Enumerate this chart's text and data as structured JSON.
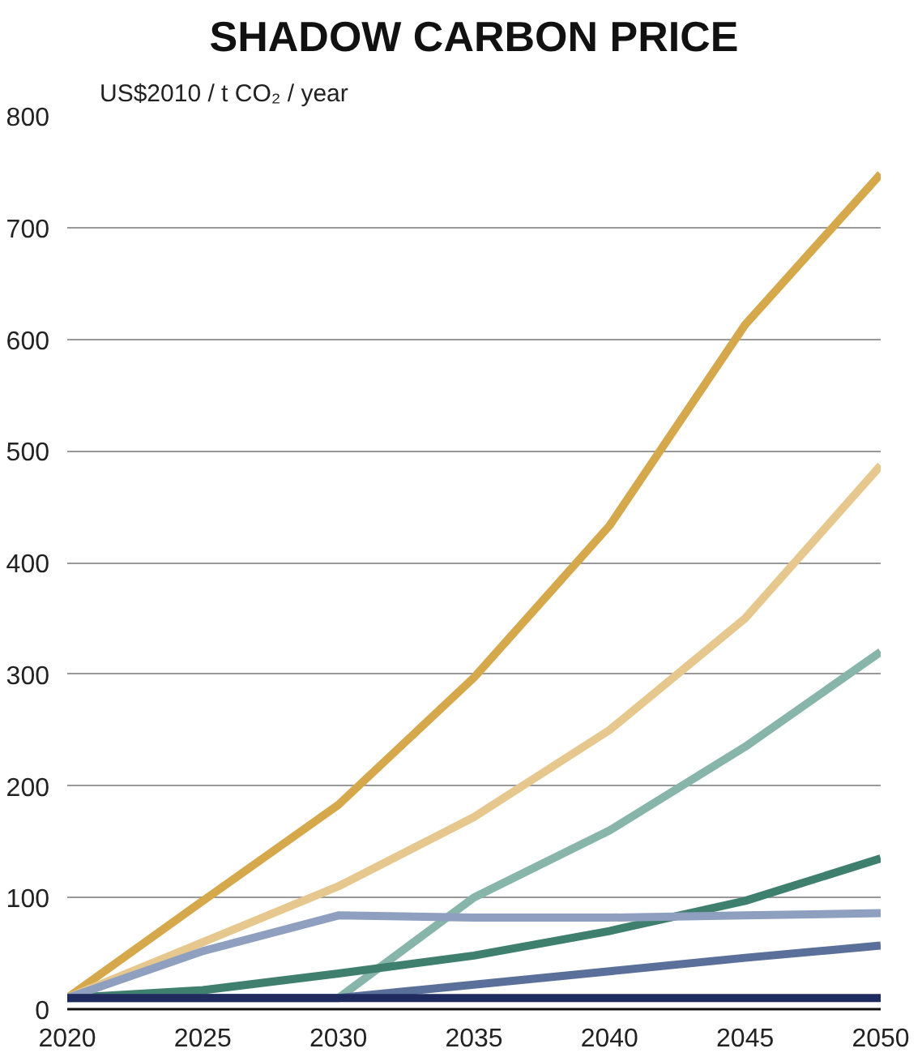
{
  "chart_data": {
    "type": "line",
    "title": "SHADOW CARBON PRICE",
    "ylabel": "US$2010 / t CO₂ / year",
    "x": [
      2020,
      2025,
      2030,
      2035,
      2040,
      2045,
      2050
    ],
    "series": [
      {
        "color": "#d4a84b",
        "values": [
          10,
          97,
          183,
          297,
          433,
          613,
          748
        ]
      },
      {
        "color": "#e6c88e",
        "values": [
          10,
          60,
          110,
          172,
          250,
          350,
          487
        ]
      },
      {
        "color": "#88b5aa",
        "values": [
          null,
          null,
          10,
          100,
          160,
          235,
          320
        ]
      },
      {
        "color": "#3f7f6e",
        "values": [
          10,
          17,
          32,
          48,
          70,
          97,
          135
        ]
      },
      {
        "color": "#8e9fbf",
        "values": [
          10,
          52,
          84,
          82,
          82,
          84,
          86
        ]
      },
      {
        "color": "#5b6f9b",
        "values": [
          10,
          10,
          10,
          22,
          34,
          46,
          57
        ]
      },
      {
        "color": "#1f2a5e",
        "values": [
          10,
          10,
          10,
          10,
          10,
          10,
          10
        ]
      }
    ],
    "xlim": [
      2020,
      2050
    ],
    "ylim": [
      0,
      800
    ],
    "xticks": [
      2020,
      2025,
      2030,
      2035,
      2040,
      2045,
      2050
    ],
    "yticks": [
      0,
      100,
      200,
      300,
      400,
      500,
      600,
      700,
      800
    ],
    "grid": "y",
    "line_style": "solid"
  }
}
